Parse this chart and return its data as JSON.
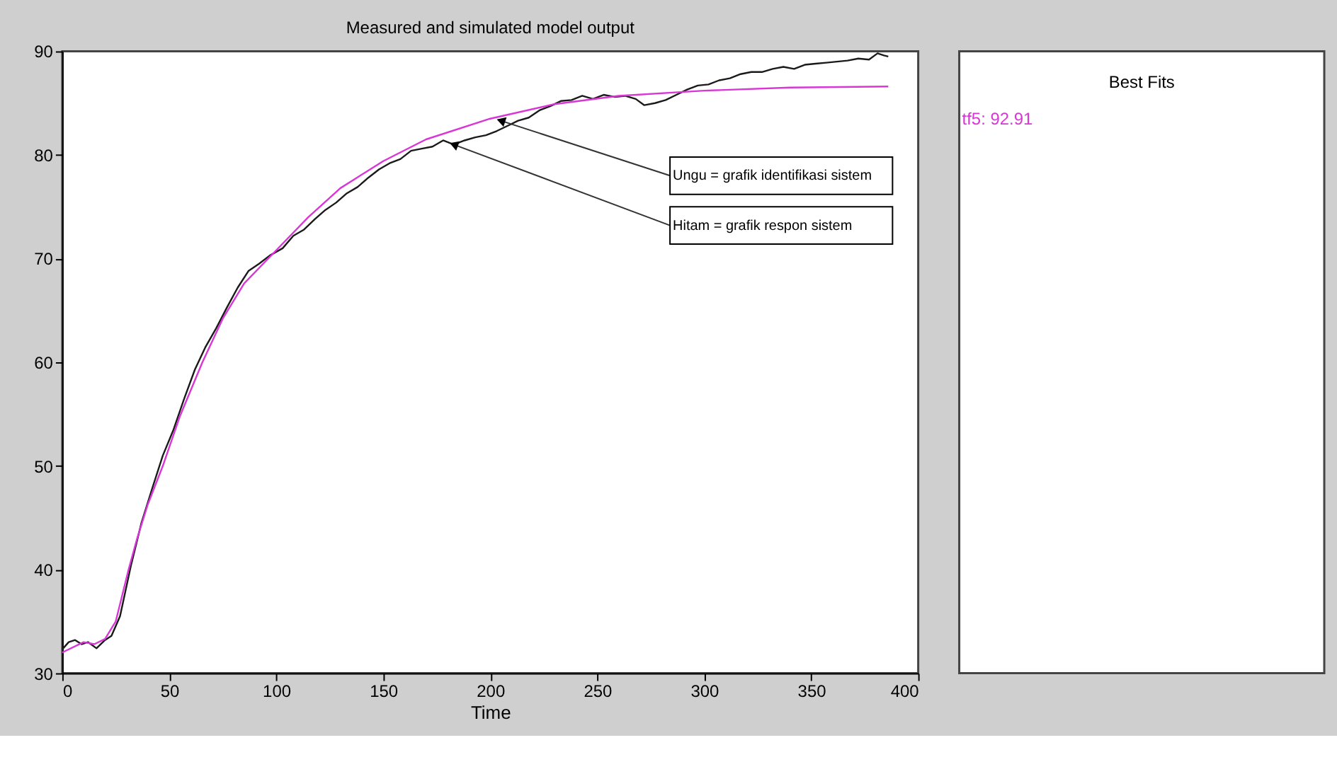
{
  "chart_data": {
    "type": "line",
    "title": "Measured and simulated model output",
    "xlabel": "Time",
    "xlim": [
      0,
      400
    ],
    "xticks": [
      0,
      50,
      100,
      150,
      200,
      250,
      300,
      350,
      400
    ],
    "ylim": [
      30,
      90
    ],
    "yticks": [
      30,
      40,
      50,
      60,
      70,
      80,
      90
    ],
    "grid": false,
    "legend": "right",
    "legend_title": "Best Fits",
    "line_style": "solid",
    "marker": "none",
    "series": [
      {
        "color": "#1a1a1a",
        "x": [
          0,
          3,
          6,
          9,
          12,
          16,
          20,
          23,
          27,
          32,
          37,
          42,
          47,
          52,
          57,
          62,
          67,
          72,
          77,
          82,
          87,
          92,
          97,
          103,
          108,
          113,
          118,
          123,
          128,
          133,
          138,
          143,
          148,
          153,
          158,
          163,
          168,
          173,
          178,
          183,
          188,
          193,
          198,
          203,
          208,
          213,
          218,
          223,
          228,
          233,
          238,
          243,
          248,
          253,
          258,
          263,
          268,
          272,
          277,
          282,
          287,
          292,
          297,
          302,
          307,
          312,
          317,
          322,
          327,
          332,
          337,
          342,
          347,
          352,
          357,
          362,
          367,
          372,
          377,
          381,
          384,
          386
        ],
        "values": [
          32.3,
          33,
          33.2,
          32.8,
          33,
          32.4,
          33.2,
          33.6,
          35.5,
          40.3,
          44.5,
          47.8,
          51,
          53.5,
          56.5,
          59.3,
          61.5,
          63.3,
          65.3,
          67.2,
          68.8,
          69.5,
          70.3,
          71,
          72.2,
          72.8,
          73.8,
          74.7,
          75.4,
          76.3,
          76.9,
          77.8,
          78.6,
          79.2,
          79.6,
          80.4,
          80.6,
          80.8,
          81.4,
          81,
          81.4,
          81.7,
          81.9,
          82.3,
          82.8,
          83.3,
          83.6,
          84.3,
          84.7,
          85.2,
          85.3,
          85.7,
          85.4,
          85.8,
          85.6,
          85.7,
          85.4,
          84.8,
          85,
          85.3,
          85.8,
          86.3,
          86.7,
          86.8,
          87.2,
          87.4,
          87.8,
          88,
          88,
          88.3,
          88.5,
          88.3,
          88.7,
          88.8,
          88.9,
          89,
          89.1,
          89.3,
          89.2,
          89.8,
          89.6,
          89.5
        ]
      },
      {
        "name": "tf5: 92.91",
        "color": "#d936d6",
        "x": [
          0,
          10,
          15,
          20,
          25,
          31,
          35,
          40,
          47,
          55,
          65.5,
          75,
          85,
          100,
          115,
          130,
          150,
          170,
          200,
          230,
          260,
          300,
          340,
          386
        ],
        "values": [
          32,
          33,
          32.8,
          33.3,
          35,
          40,
          43,
          46.3,
          50,
          54.8,
          60,
          64.2,
          67.6,
          70.8,
          74,
          76.8,
          79.4,
          81.5,
          83.5,
          84.9,
          85.7,
          86.2,
          86.5,
          86.6
        ]
      }
    ],
    "annotations": [
      {
        "text": "Ungu = grafik identifikasi sistem",
        "x": 205,
        "y": 83.3
      },
      {
        "text": "Hitam = grafik respon sistem",
        "x": 183,
        "y": 81
      }
    ]
  }
}
